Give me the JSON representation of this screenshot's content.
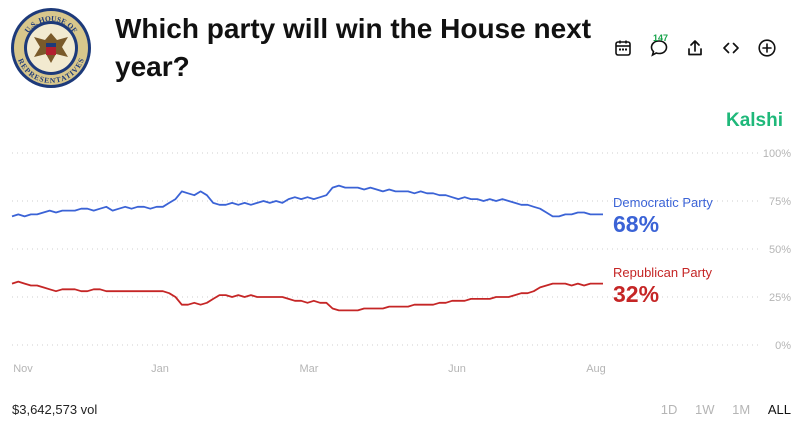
{
  "seal": {
    "icon": "house-of-representatives-seal",
    "text_top": "U.S. HOUSE OF",
    "text_bottom": "REPRESENTATIVES"
  },
  "title": "Which party will win the House next year?",
  "toolbar": {
    "calendar_icon": "calendar-icon",
    "comments_icon": "comment-icon",
    "comments_count": "147",
    "share_icon": "share-icon",
    "embed_icon": "embed-icon",
    "add_icon": "plus-circle-icon"
  },
  "brand": "Kalshi",
  "colors": {
    "democratic": "#3b63d6",
    "republican": "#c52626",
    "brand": "#1fb87a",
    "grid": "#cfcfcf",
    "axis": "#b5b5b5"
  },
  "chart_data": {
    "type": "line",
    "x_ticks": [
      "Nov",
      "Jan",
      "Mar",
      "Jun",
      "Aug"
    ],
    "y_ticks": [
      "100%",
      "75%",
      "50%",
      "25%",
      "0%"
    ],
    "ylim": [
      0,
      100
    ],
    "series": [
      {
        "name": "Democratic Party",
        "current": "68%",
        "color": "#3b63d6",
        "values": [
          67,
          68,
          67,
          68,
          68,
          69,
          70,
          69,
          70,
          70,
          70,
          71,
          71,
          70,
          71,
          72,
          70,
          71,
          72,
          71,
          72,
          72,
          71,
          72,
          72,
          74,
          76,
          80,
          79,
          78,
          80,
          78,
          74,
          73,
          73,
          74,
          73,
          74,
          73,
          74,
          75,
          74,
          75,
          74,
          76,
          77,
          76,
          77,
          76,
          77,
          78,
          82,
          83,
          82,
          82,
          82,
          81,
          82,
          81,
          80,
          81,
          80,
          80,
          80,
          79,
          80,
          79,
          79,
          78,
          78,
          77,
          76,
          77,
          76,
          76,
          75,
          76,
          75,
          76,
          75,
          74,
          73,
          73,
          72,
          71,
          69,
          67,
          67,
          68,
          68,
          69,
          69,
          68,
          68,
          68
        ]
      },
      {
        "name": "Republican Party",
        "current": "32%",
        "color": "#c52626",
        "values": [
          32,
          33,
          32,
          31,
          31,
          30,
          29,
          28,
          29,
          29,
          29,
          28,
          28,
          29,
          29,
          28,
          28,
          28,
          28,
          28,
          28,
          28,
          28,
          28,
          28,
          27,
          25,
          21,
          21,
          22,
          21,
          22,
          24,
          26,
          26,
          25,
          26,
          25,
          26,
          25,
          25,
          25,
          25,
          25,
          24,
          23,
          23,
          22,
          23,
          22,
          22,
          19,
          18,
          18,
          18,
          18,
          19,
          19,
          19,
          19,
          20,
          20,
          20,
          20,
          21,
          21,
          21,
          21,
          22,
          22,
          23,
          23,
          23,
          24,
          24,
          24,
          24,
          25,
          25,
          25,
          26,
          27,
          27,
          28,
          30,
          31,
          32,
          32,
          32,
          31,
          32,
          31,
          32,
          32,
          32
        ]
      }
    ]
  },
  "footer": {
    "volume": "$3,642,573 vol",
    "ranges": [
      "1D",
      "1W",
      "1M",
      "ALL"
    ],
    "active_range": "ALL"
  }
}
